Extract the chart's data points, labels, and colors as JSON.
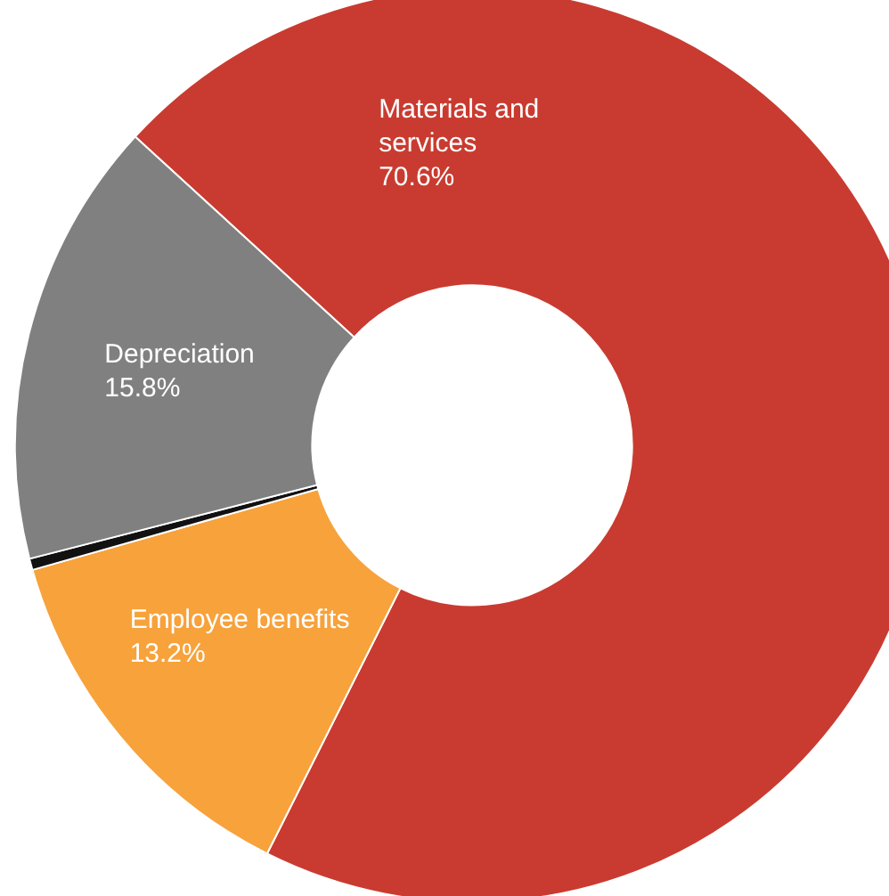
{
  "chart_data": {
    "type": "donut",
    "categories": [
      "Materials and services",
      "Employee benefits",
      null,
      "Depreciation"
    ],
    "values": [
      70.6,
      13.2,
      0.4,
      15.8
    ],
    "value_labels": [
      "70.6%",
      "13.2%",
      null,
      "15.8%"
    ],
    "colors": [
      "#c93b30",
      "#f7a23b",
      "#111111",
      "#808080"
    ],
    "legend": false
  }
}
